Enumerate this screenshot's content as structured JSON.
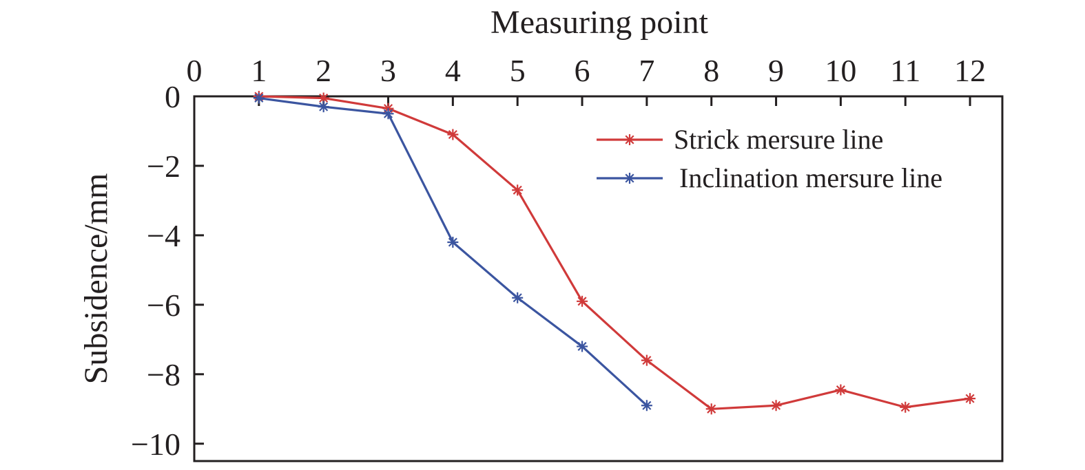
{
  "chart_data": {
    "type": "line",
    "xlabel": "Measuring point",
    "ylabel": "Subsidence/mm",
    "xlim": [
      0,
      12.5
    ],
    "ylim": [
      -10.5,
      0
    ],
    "x_ticks": [
      0,
      1,
      2,
      3,
      4,
      5,
      6,
      7,
      8,
      9,
      10,
      11,
      12
    ],
    "y_ticks": [
      0,
      -2,
      -4,
      -6,
      -8,
      -10
    ],
    "x_tick_labels": [
      "0",
      "1",
      "2",
      "3",
      "4",
      "5",
      "6",
      "7",
      "8",
      "9",
      "10",
      "11",
      "12"
    ],
    "y_tick_labels": [
      "0",
      "−2",
      "−4",
      "−6",
      "−8",
      "−10"
    ],
    "x_axis_position": "top",
    "grid": false,
    "legend_position": "top-right",
    "marker": "asterisk",
    "series": [
      {
        "name": "Strick mersure line",
        "color": "#d03a3a",
        "x": [
          1,
          2,
          3,
          4,
          5,
          6,
          7,
          8,
          9,
          10,
          11,
          12
        ],
        "y": [
          0,
          -0.05,
          -0.35,
          -1.1,
          -2.7,
          -5.9,
          -7.6,
          -9.0,
          -8.9,
          -8.45,
          -8.95,
          -8.7
        ]
      },
      {
        "name": "Inclination mersure line",
        "color": "#3b55a0",
        "x": [
          1,
          2,
          3,
          4,
          5,
          6,
          7
        ],
        "y": [
          -0.05,
          -0.3,
          -0.5,
          -4.2,
          -5.8,
          -7.2,
          -8.9
        ]
      }
    ]
  }
}
